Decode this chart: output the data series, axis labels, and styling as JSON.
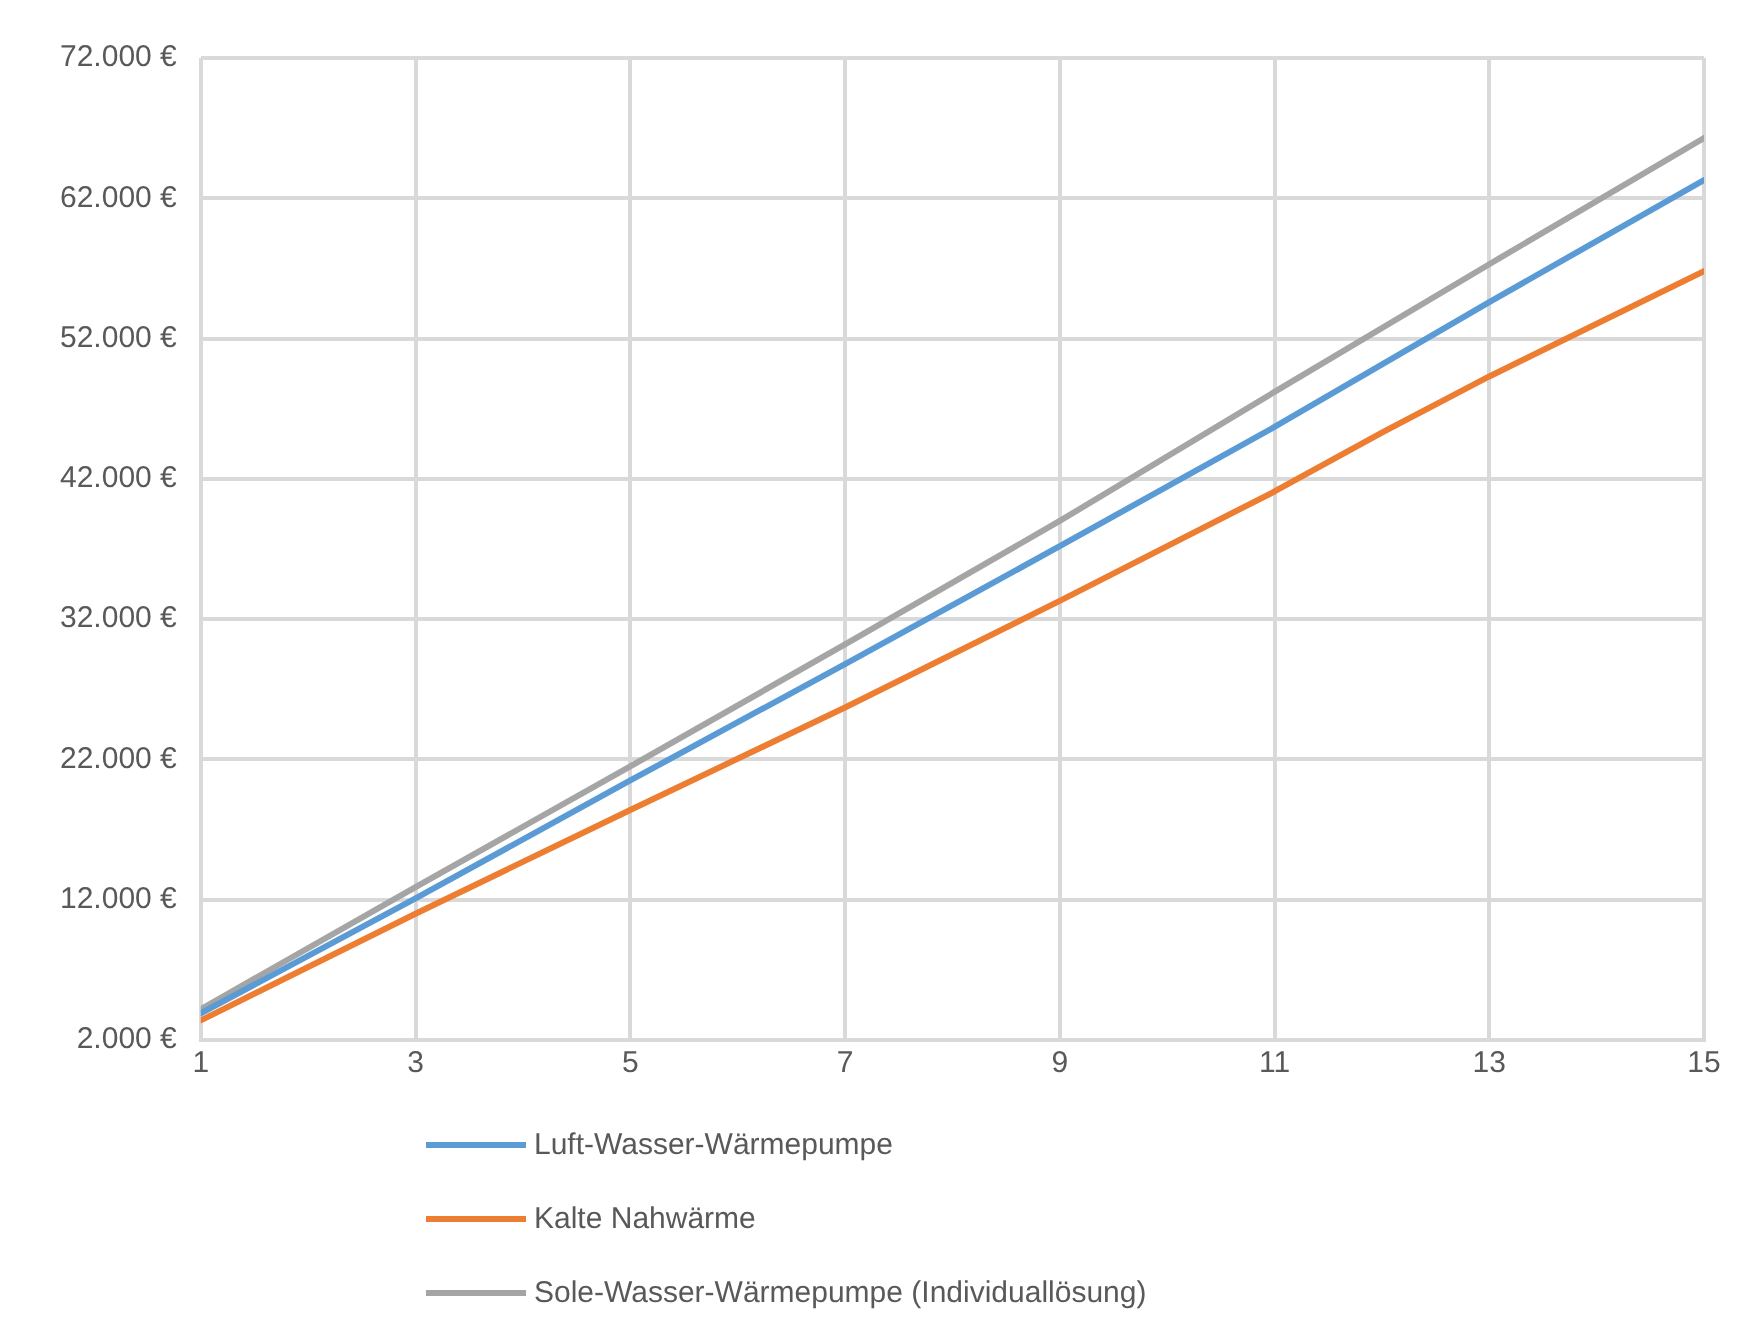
{
  "chart_data": {
    "type": "line",
    "xlim": [
      1,
      15
    ],
    "xticks": [
      1,
      3,
      5,
      7,
      9,
      11,
      13,
      15
    ],
    "ylim": [
      2000,
      72000
    ],
    "yticks": [
      {
        "value": 2000,
        "label": "2.000 €"
      },
      {
        "value": 12000,
        "label": "12.000 €"
      },
      {
        "value": 22000,
        "label": "22.000 €"
      },
      {
        "value": 32000,
        "label": "32.000 €"
      },
      {
        "value": 42000,
        "label": "42.000 €"
      },
      {
        "value": 52000,
        "label": "52.000 €"
      },
      {
        "value": 62000,
        "label": "62.000 €"
      },
      {
        "value": 72000,
        "label": "72.000 €"
      }
    ],
    "grid": true,
    "legend": "bottom",
    "marker": "none",
    "line_style": "solid",
    "series": [
      {
        "name": "Luft-Wasser-Wärmepumpe",
        "color": "#5b9bd5",
        "x": [
          1,
          3,
          5,
          7,
          9,
          11,
          13,
          15
        ],
        "values": [
          3900,
          12100,
          20500,
          28800,
          37200,
          45700,
          54600,
          63300
        ]
      },
      {
        "name": "Kalte Nahwärme",
        "color": "#ed7d31",
        "x": [
          1,
          3,
          5,
          7,
          9,
          11,
          12,
          13,
          15
        ],
        "values": [
          3400,
          11000,
          18400,
          25700,
          33300,
          41100,
          45300,
          49300,
          56800
        ]
      },
      {
        "name": "Sole-Wasser-Wärmepumpe (Individuallösung)",
        "color": "#a5a5a5",
        "x": [
          1,
          3,
          5,
          7,
          9,
          11,
          13,
          15
        ],
        "values": [
          4200,
          12900,
          21500,
          30200,
          39000,
          48200,
          57300,
          66300
        ]
      }
    ]
  }
}
